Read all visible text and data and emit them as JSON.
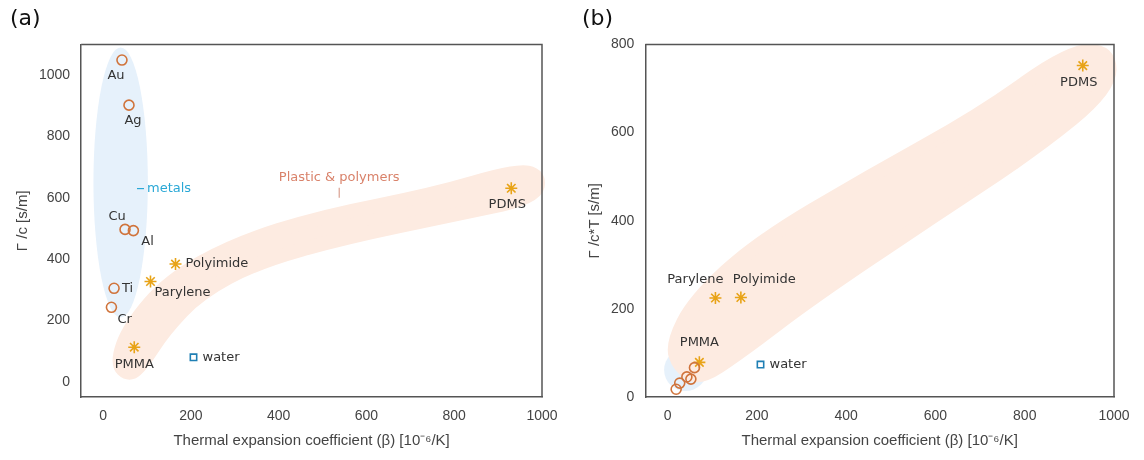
{
  "chart_data": [
    {
      "type": "scatter",
      "title": "(a)",
      "xlabel": "Thermal expansion coefficient (β) [10⁻⁶/K]",
      "ylabel": "Γ /c [s/m]",
      "xlim": [
        -50,
        1000
      ],
      "xticks": [
        0,
        200,
        400,
        600,
        800,
        1000
      ],
      "ylim": [
        -50,
        1100
      ],
      "yticks": [
        0,
        200,
        400,
        600,
        800,
        1000
      ],
      "grid": false,
      "legend": false,
      "series": [
        {
          "color": "#d0743c",
          "marker": "circle",
          "x": [
            43,
            59,
            50,
            69,
            25,
            19
          ],
          "values": [
            1049,
            902,
            497,
            493,
            305,
            243
          ]
        },
        {
          "color": "#e8a317",
          "marker": "cross",
          "x": [
            165,
            108,
            71,
            930
          ],
          "values": [
            384,
            327,
            113,
            631
          ]
        },
        {
          "color": "#1f7fb4",
          "marker": "square",
          "x": [
            206
          ],
          "values": [
            80
          ]
        }
      ],
      "annotations": [
        {
          "text": "Au",
          "x": 43,
          "y": 1049
        },
        {
          "text": "Ag",
          "x": 59,
          "y": 902
        },
        {
          "text": "Cu",
          "x": 50,
          "y": 497
        },
        {
          "text": "Al",
          "x": 69,
          "y": 493
        },
        {
          "text": "Ti",
          "x": 25,
          "y": 305
        },
        {
          "text": "Cr",
          "x": 19,
          "y": 243
        },
        {
          "text": "Polyimide",
          "x": 165,
          "y": 384
        },
        {
          "text": "Parylene",
          "x": 108,
          "y": 327
        },
        {
          "text": "PMMA",
          "x": 71,
          "y": 113
        },
        {
          "text": "PDMS",
          "x": 930,
          "y": 631
        },
        {
          "text": "water",
          "x": 206,
          "y": 80
        },
        "metals",
        "Plastic & polymers"
      ]
    },
    {
      "type": "scatter",
      "title": "(b)",
      "xlabel": "Thermal expansion coefficient (β) [10⁻⁶/K]",
      "ylabel": "Γ /c*T [s/m]",
      "xlim": [
        -50,
        1000
      ],
      "xticks": [
        0,
        200,
        400,
        600,
        800,
        1000
      ],
      "ylim": [
        0,
        800
      ],
      "yticks": [
        0,
        200,
        400,
        600,
        800
      ],
      "grid": false,
      "legend": false,
      "series": [
        {
          "color": "#d0743c",
          "marker": "circle",
          "x": [
            19,
            27,
            43,
            52,
            60
          ],
          "values": [
            18,
            32,
            46,
            41,
            67
          ]
        },
        {
          "color": "#e8a317",
          "marker": "cross",
          "x": [
            107,
            164,
            71,
            930
          ],
          "values": [
            225,
            226,
            79,
            752
          ]
        },
        {
          "color": "#1f7fb4",
          "marker": "square",
          "x": [
            208
          ],
          "values": [
            74
          ]
        }
      ],
      "annotations": [
        {
          "text": "Parylene",
          "x": 107,
          "y": 225
        },
        {
          "text": "Polyimide",
          "x": 164,
          "y": 226
        },
        {
          "text": "PMMA",
          "x": 71,
          "y": 79
        },
        {
          "text": "PDMS",
          "x": 930,
          "y": 752
        },
        {
          "text": "water",
          "x": 208,
          "y": 74
        }
      ]
    }
  ]
}
